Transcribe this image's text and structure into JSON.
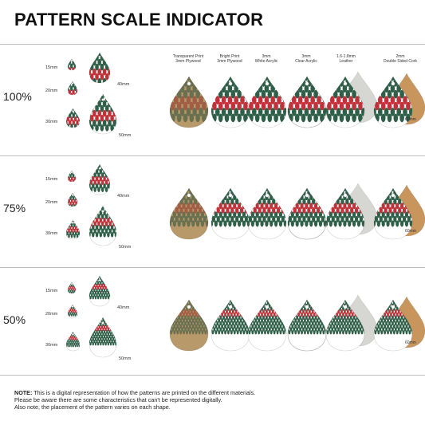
{
  "title": "PATTERN SCALE INDICATOR",
  "materials": [
    {
      "line1": "Transparent Print",
      "line2": "3mm Plywood",
      "style": "plywood"
    },
    {
      "line1": "Bright Print",
      "line2": "3mm Plywood",
      "style": "bright"
    },
    {
      "line1": "3mm",
      "line2": "White Acrylic",
      "style": "white"
    },
    {
      "line1": "3mm",
      "line2": "Clear Acrylic",
      "style": "clear"
    },
    {
      "line1": "1.6-1.8mm",
      "line2": "Leather",
      "style": "leather"
    },
    {
      "line1": "2mm",
      "line2": "Double Sided Cork",
      "style": "cork"
    }
  ],
  "scales": [
    "100%",
    "75%",
    "50%"
  ],
  "sizes": [
    "15mm",
    "20mm",
    "30mm",
    "40mm",
    "50mm"
  ],
  "side_label": "60mm",
  "colors": {
    "green": "#2f5f49",
    "red": "#c0323a",
    "plywood": "#b89a6a",
    "cork": "#c8955c",
    "leather": "#d6d6d2"
  },
  "note": {
    "label": "NOTE:",
    "line1": " This is a digital representation of how the patterns are printed on the different materials.",
    "line2": "Please be aware there are some characteristics that can't be represented digitally.",
    "line3": "Also note, the placement of the pattern varies on each shape."
  }
}
